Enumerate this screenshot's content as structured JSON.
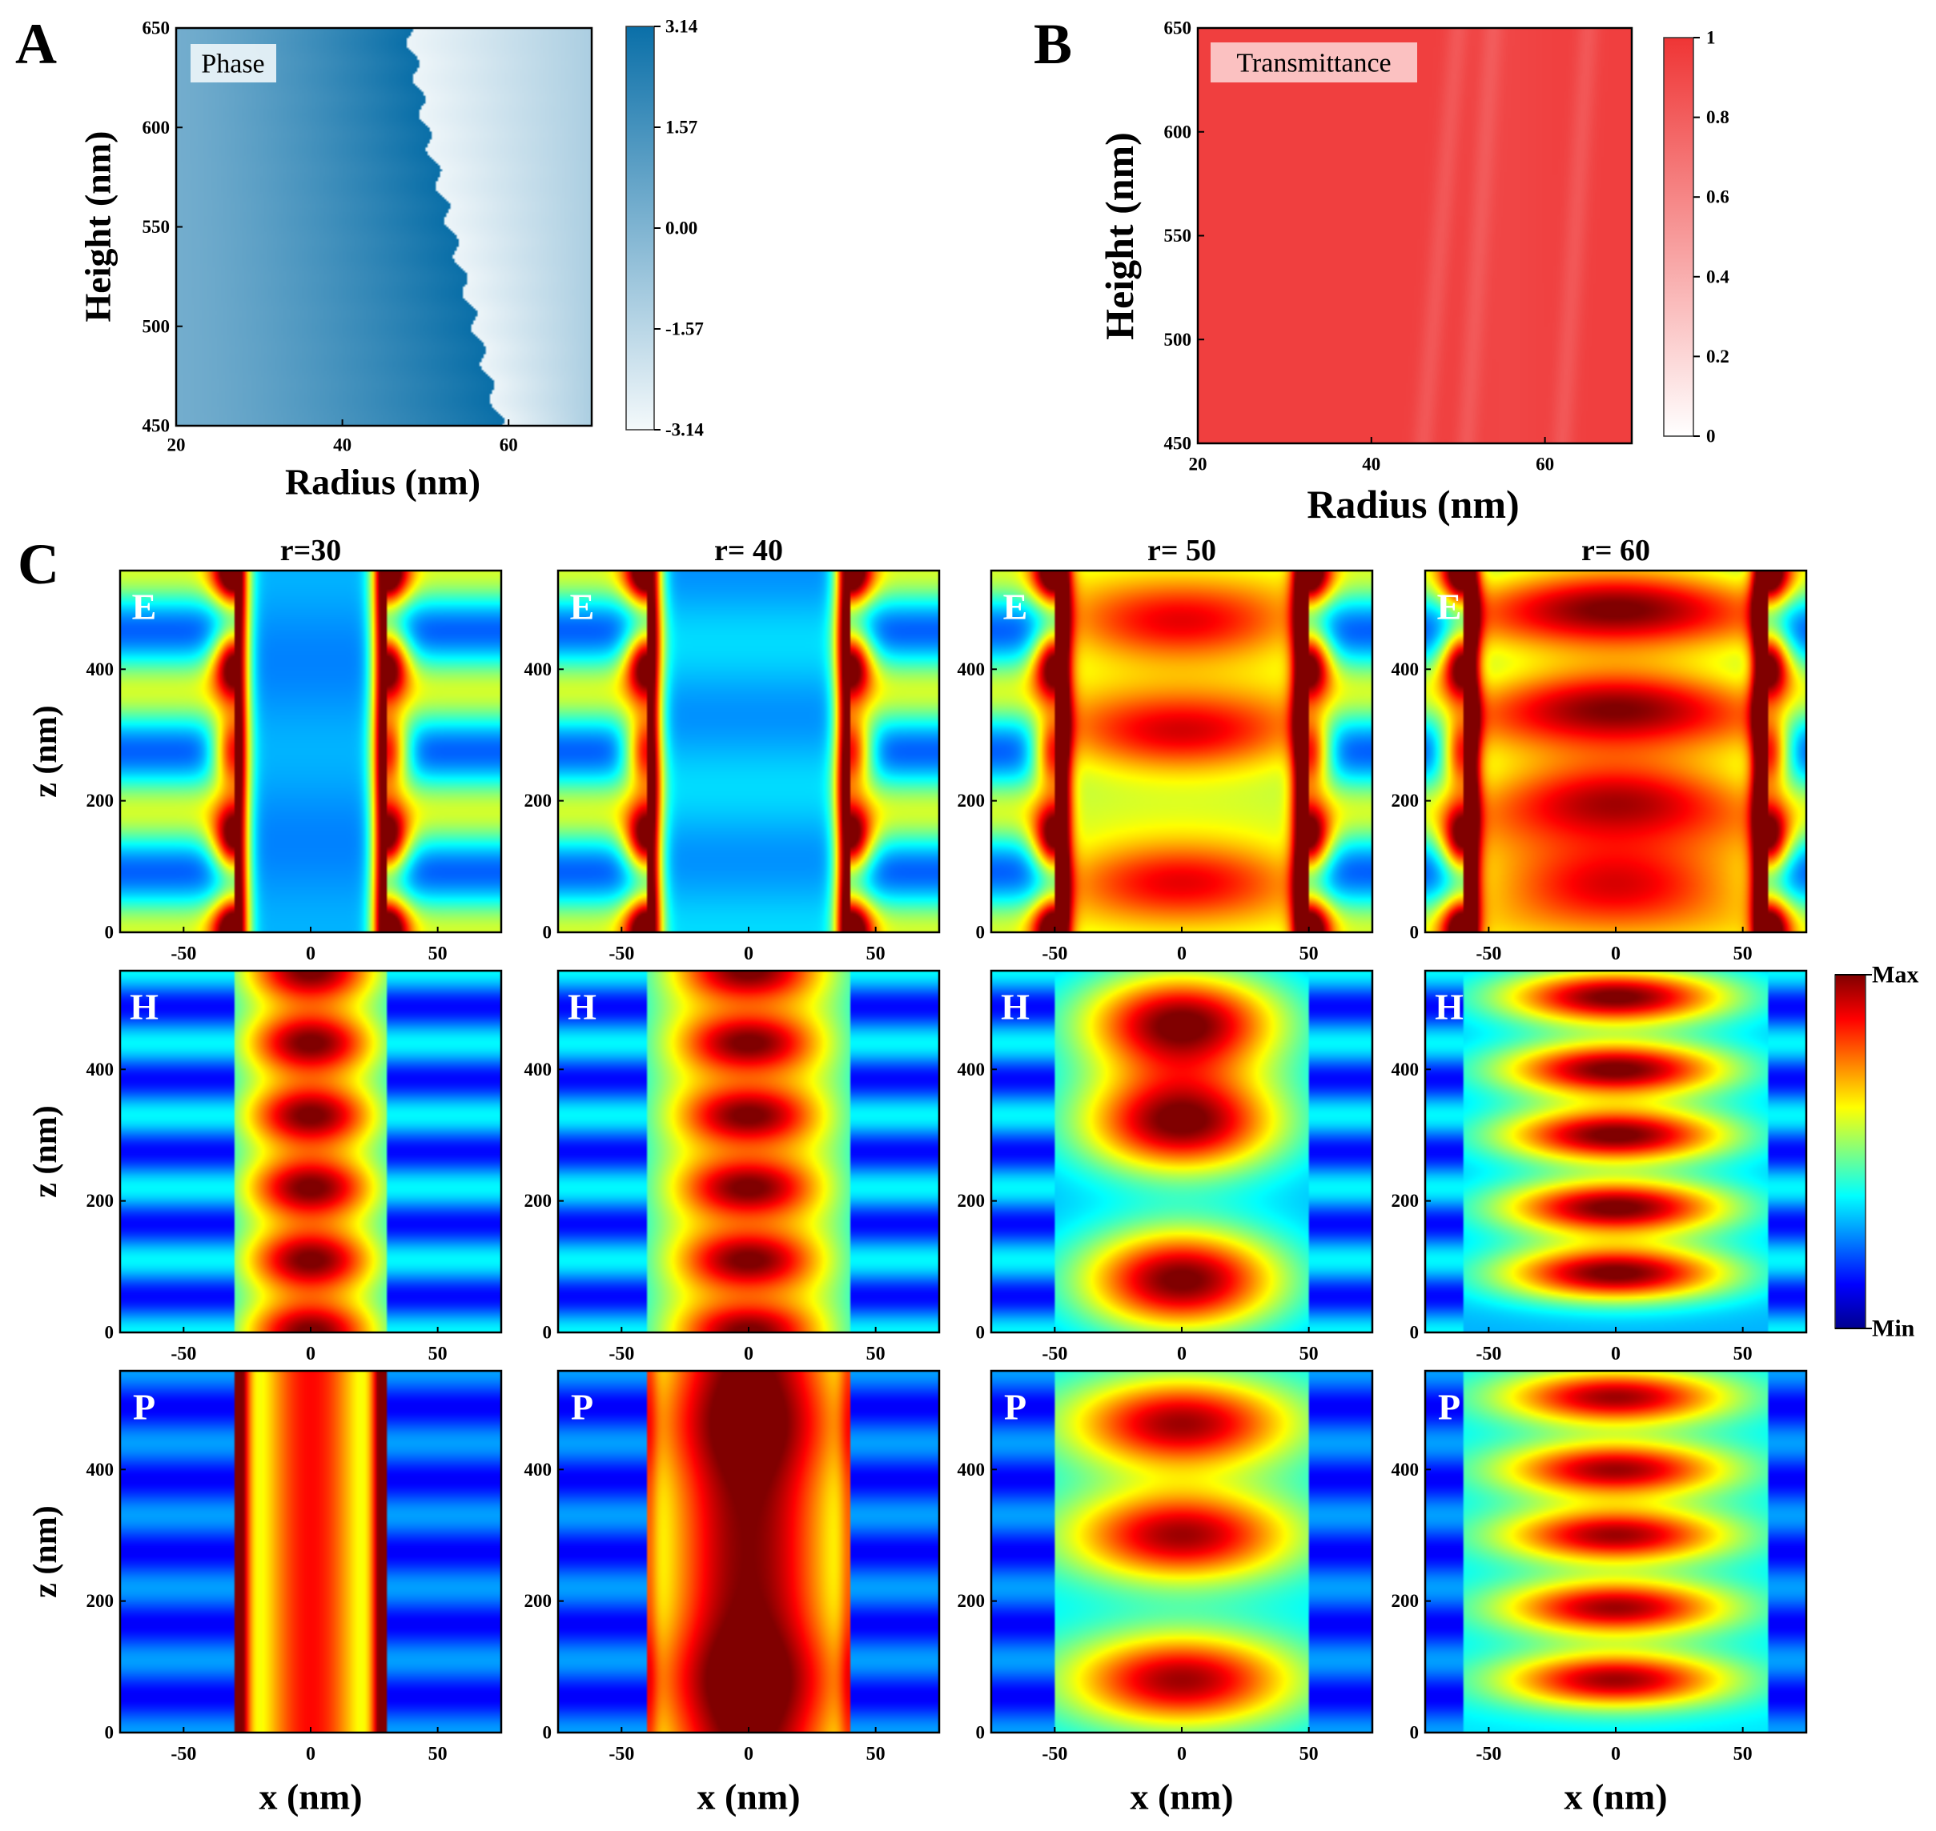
{
  "figure": {
    "panel_labels": [
      "A",
      "B",
      "C"
    ]
  },
  "colors": {
    "phase_light": "#f4f9fb",
    "phase_dark": "#0a6fa8",
    "trans_light": "#ffffff",
    "trans_full": "#ef3535",
    "jet": [
      "#00008f",
      "#0000ff",
      "#0080ff",
      "#00ffff",
      "#80ff80",
      "#ffff00",
      "#ff8000",
      "#ff0000",
      "#800000"
    ]
  },
  "chart_data": [
    {
      "id": "A",
      "type": "heatmap",
      "title": "Phase",
      "xlabel": "Radius (nm)",
      "ylabel": "Height (nm)",
      "xlim": [
        20,
        70
      ],
      "ylim": [
        450,
        650
      ],
      "xticks": [
        20,
        40,
        60
      ],
      "yticks": [
        450,
        500,
        550,
        600,
        650
      ],
      "colorbar": {
        "ticks": [
          "3.14",
          "1.57",
          "0.00",
          "-1.57",
          "-3.14"
        ],
        "range": [
          -3.14,
          3.14
        ]
      },
      "phase_wrap_boundary": {
        "height": [
          450,
          500,
          550,
          600,
          650
        ],
        "radius": [
          59,
          56,
          53,
          50,
          48
        ]
      }
    },
    {
      "id": "B",
      "type": "heatmap",
      "title": "Transmittance",
      "xlabel": "Radius (nm)",
      "ylabel": "Height (nm)",
      "xlim": [
        20,
        70
      ],
      "ylim": [
        450,
        650
      ],
      "xticks": [
        20,
        40,
        60
      ],
      "yticks": [
        450,
        500,
        550,
        600,
        650
      ],
      "colorbar": {
        "ticks": [
          "1",
          "0.8",
          "0.6",
          "0.4",
          "0.2",
          "0"
        ],
        "range": [
          0,
          1
        ]
      },
      "typical_value": 0.95,
      "dip_radii": [
        46,
        51,
        62
      ]
    },
    {
      "id": "C",
      "type": "heatmap",
      "description": "field maps",
      "column_titles": [
        "r=30",
        "r= 40",
        "r= 50",
        "r= 60"
      ],
      "radii": [
        30,
        40,
        50,
        60
      ],
      "row_labels": [
        "E",
        "H",
        "P"
      ],
      "xlabel": "x (nm)",
      "ylabel": "z (nm)",
      "xlim": [
        -75,
        75
      ],
      "ylim": [
        0,
        550
      ],
      "xticks": [
        -50,
        0,
        50
      ],
      "yticks": [
        0,
        200,
        400
      ],
      "colorbar": {
        "max_label": "Max",
        "min_label": "Min"
      }
    }
  ]
}
